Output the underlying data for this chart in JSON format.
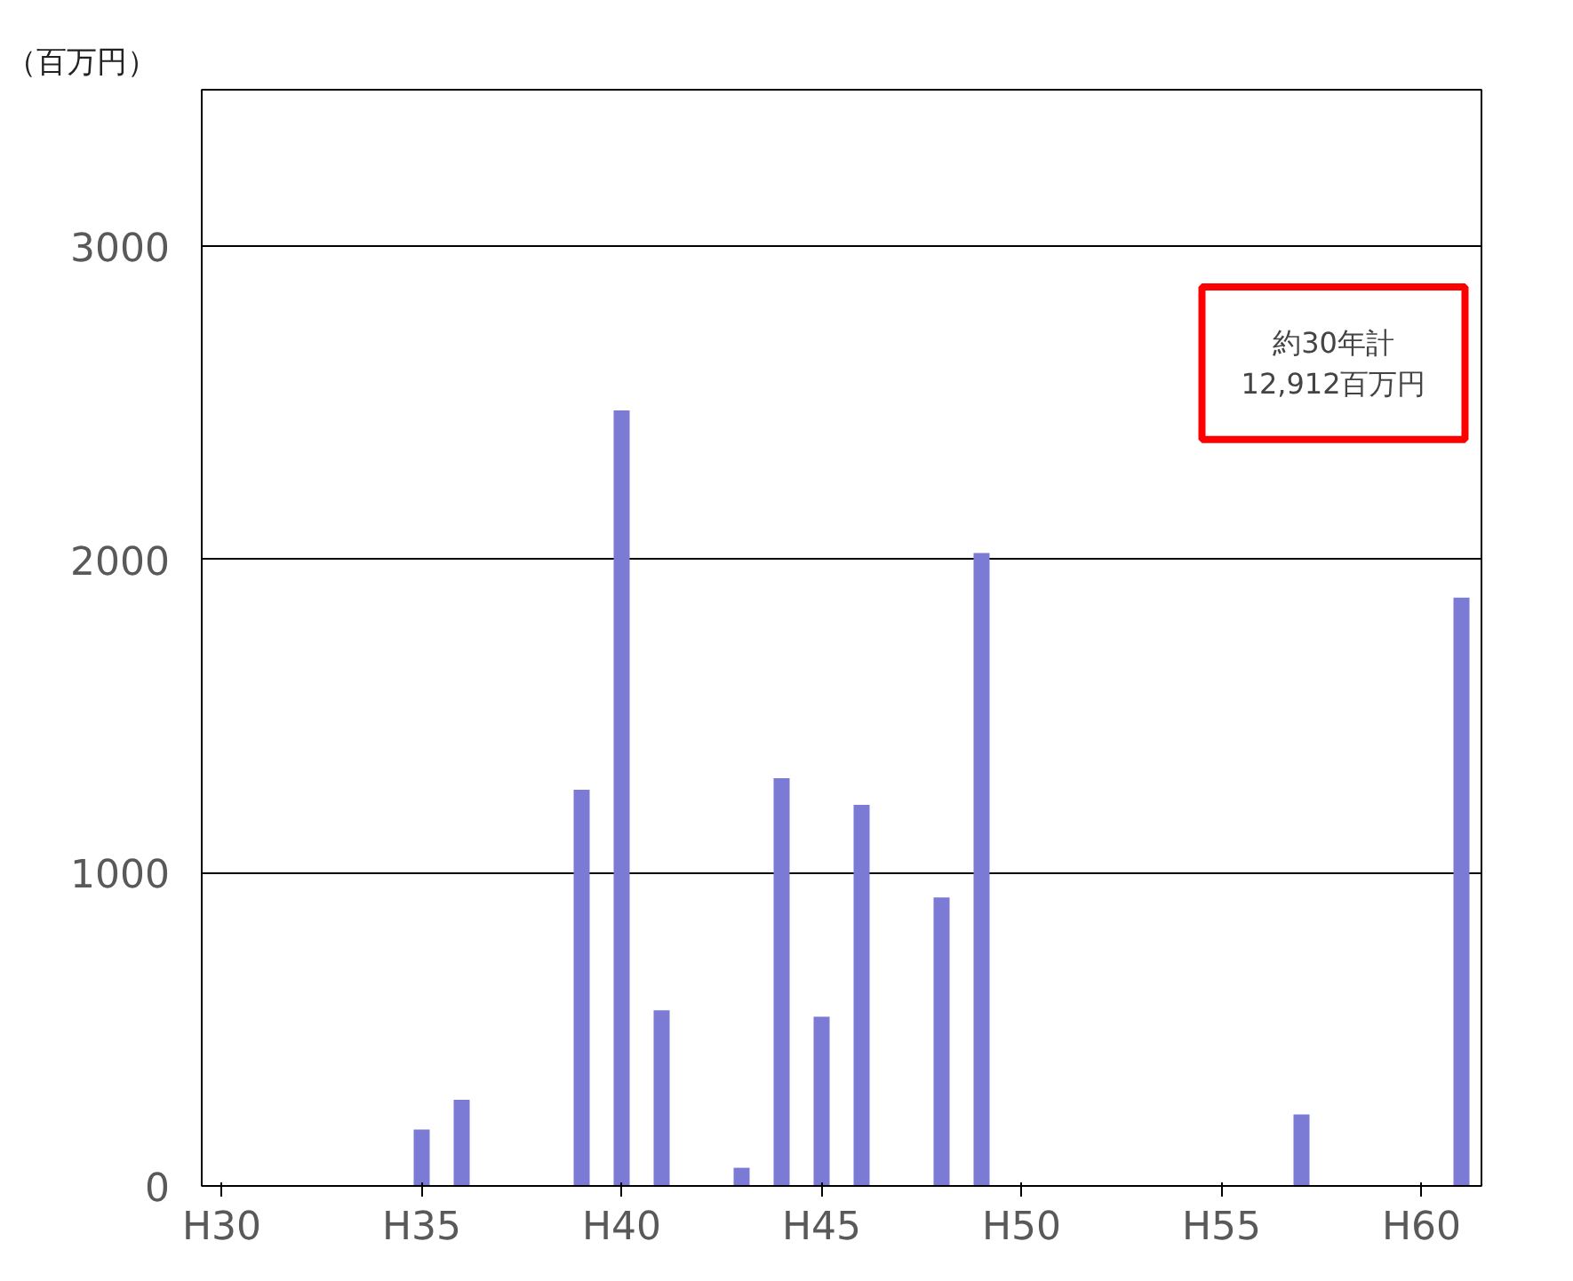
{
  "chart_data": {
    "type": "bar",
    "ylabel": "（百万円）",
    "categories": [
      "H30",
      null,
      null,
      null,
      null,
      "H35",
      null,
      null,
      null,
      null,
      "H40",
      null,
      null,
      null,
      null,
      "H45",
      null,
      null,
      null,
      null,
      "H50",
      null,
      null,
      null,
      null,
      "H55",
      null,
      null,
      null,
      null,
      "H60",
      null
    ],
    "values": [
      null,
      null,
      null,
      null,
      null,
      180,
      275,
      null,
      null,
      1265,
      2476,
      561,
      null,
      58,
      1302,
      540,
      1217,
      null,
      921,
      2021,
      null,
      null,
      null,
      null,
      null,
      null,
      null,
      228,
      null,
      null,
      null,
      1878
    ],
    "color": "#7b7bd6",
    "ylim": [
      0,
      3500
    ],
    "yticks": [
      0,
      1000,
      2000,
      3000
    ],
    "grid": "y",
    "annotations": [
      "約30年計\n12,912百万円"
    ]
  }
}
